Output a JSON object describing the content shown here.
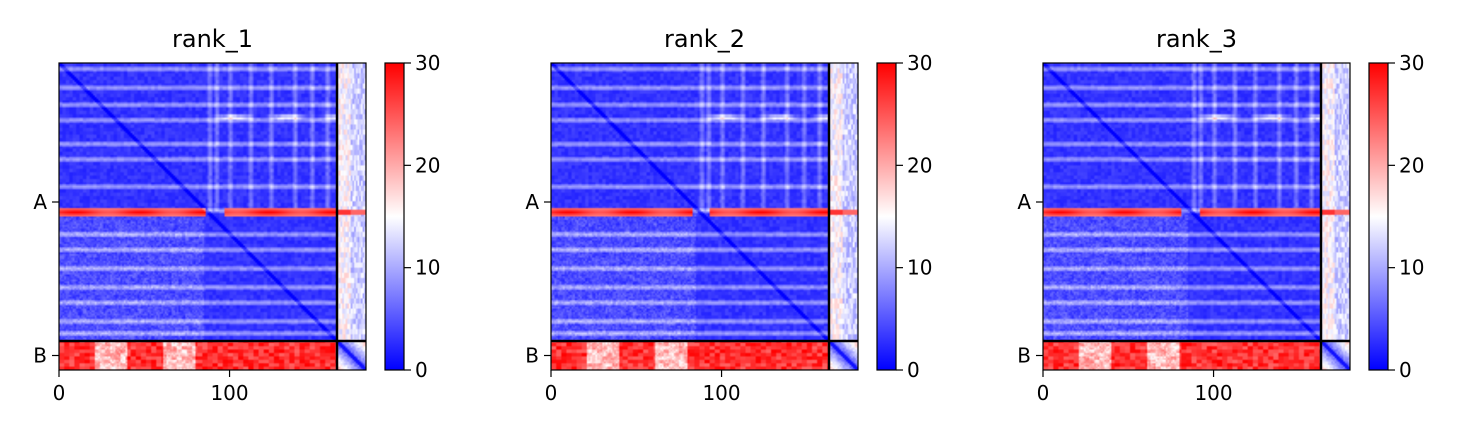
{
  "chart_data": [
    {
      "type": "heatmap",
      "title": "rank_1",
      "x_ticks": [
        0,
        100
      ],
      "y_tick_labels": [
        "A",
        "B"
      ],
      "xlim": [
        0,
        180
      ],
      "chain_boundary": 163,
      "colorbar": {
        "range": [
          0,
          30
        ],
        "ticks": [
          0,
          10,
          20,
          30
        ],
        "colors": [
          "#0000ff",
          "#ffffff",
          "#ff0000"
        ]
      },
      "band_row_A": 87,
      "high_error_row_cols": [
        [
          0,
          85
        ],
        [
          97,
          163
        ]
      ]
    },
    {
      "type": "heatmap",
      "title": "rank_2",
      "x_ticks": [
        0,
        100
      ],
      "y_tick_labels": [
        "A",
        "B"
      ],
      "xlim": [
        0,
        180
      ],
      "chain_boundary": 163,
      "colorbar": {
        "range": [
          0,
          30
        ],
        "ticks": [
          0,
          10,
          20,
          30
        ],
        "colors": [
          "#0000ff",
          "#ffffff",
          "#ff0000"
        ]
      },
      "band_row_A": 87,
      "high_error_row_cols": [
        [
          0,
          82
        ],
        [
          93,
          163
        ]
      ]
    },
    {
      "type": "heatmap",
      "title": "rank_3",
      "x_ticks": [
        0,
        100
      ],
      "y_tick_labels": [
        "A",
        "B"
      ],
      "xlim": [
        0,
        180
      ],
      "chain_boundary": 163,
      "colorbar": {
        "range": [
          0,
          30
        ],
        "ticks": [
          0,
          10,
          20,
          30
        ],
        "colors": [
          "#0000ff",
          "#ffffff",
          "#ff0000"
        ]
      },
      "band_row_A": 87,
      "high_error_row_cols": [
        [
          0,
          80
        ],
        [
          92,
          163
        ]
      ]
    }
  ]
}
